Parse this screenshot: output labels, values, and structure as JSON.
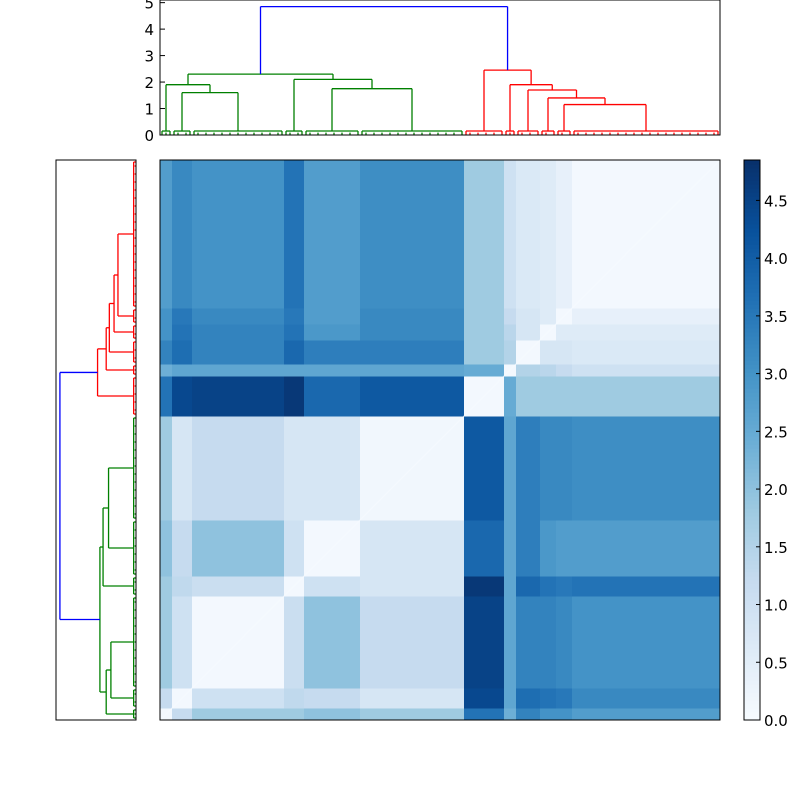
{
  "chart_data": {
    "type": "heatmap",
    "title": "",
    "colormap": "Blues",
    "color_range": [
      0,
      4.85
    ],
    "colorbar_ticks": [
      "0.0",
      "0.5",
      "1.0",
      "1.5",
      "2.0",
      "2.5",
      "3.0",
      "3.5",
      "4.0",
      "4.5"
    ],
    "top_dendrogram_ticks": [
      "0",
      "1",
      "2",
      "3",
      "4",
      "5"
    ],
    "dendrogram_height_range": [
      0,
      5.1
    ],
    "link_colors": {
      "root": "#0000ff",
      "cluster_1": "#008000",
      "cluster_2": "#ff0000"
    },
    "segments": [
      {
        "id": "A",
        "leaves": 3
      },
      {
        "id": "B",
        "leaves": 5
      },
      {
        "id": "C",
        "leaves": 23
      },
      {
        "id": "D",
        "leaves": 5
      },
      {
        "id": "E",
        "leaves": 14
      },
      {
        "id": "F",
        "leaves": 26
      },
      {
        "id": "G",
        "leaves": 10
      },
      {
        "id": "H",
        "leaves": 3
      },
      {
        "id": "I",
        "leaves": 6
      },
      {
        "id": "J",
        "leaves": 4
      },
      {
        "id": "K",
        "leaves": 4
      },
      {
        "id": "L",
        "leaves": 37
      }
    ],
    "block_values": [
      [
        0.1,
        1.2,
        1.8,
        1.8,
        2.0,
        1.8,
        3.6,
        2.4,
        3.3,
        3.0,
        3.0,
        2.8
      ],
      [
        1.2,
        0.1,
        1.0,
        1.3,
        1.2,
        0.8,
        4.4,
        2.6,
        3.7,
        3.6,
        3.5,
        3.2
      ],
      [
        1.8,
        1.0,
        0.1,
        1.1,
        2.0,
        1.2,
        4.5,
        2.6,
        3.3,
        3.3,
        3.2,
        3.0
      ],
      [
        1.8,
        1.3,
        1.1,
        0.1,
        1.0,
        0.8,
        4.7,
        2.6,
        3.8,
        3.6,
        3.5,
        3.6
      ],
      [
        2.0,
        1.2,
        2.0,
        1.0,
        0.1,
        0.8,
        3.8,
        2.6,
        3.4,
        2.9,
        2.8,
        2.8
      ],
      [
        1.8,
        0.8,
        1.2,
        0.8,
        0.8,
        0.15,
        4.1,
        2.6,
        3.4,
        3.2,
        3.2,
        3.1
      ],
      [
        3.6,
        4.4,
        4.5,
        4.7,
        3.8,
        4.1,
        0.1,
        2.5,
        1.8,
        1.8,
        1.8,
        1.8
      ],
      [
        2.4,
        2.6,
        2.6,
        2.6,
        2.6,
        2.6,
        2.5,
        0.1,
        1.5,
        1.4,
        1.2,
        1.0
      ],
      [
        3.3,
        3.7,
        3.3,
        3.8,
        3.4,
        3.4,
        1.8,
        1.5,
        0.1,
        0.8,
        0.8,
        0.7
      ],
      [
        3.0,
        3.6,
        3.3,
        3.6,
        2.9,
        3.2,
        1.8,
        1.4,
        0.8,
        0.1,
        0.6,
        0.6
      ],
      [
        3.0,
        3.5,
        3.2,
        3.5,
        2.8,
        3.2,
        1.8,
        1.2,
        0.8,
        0.6,
        0.1,
        0.4
      ],
      [
        2.8,
        3.2,
        3.0,
        3.6,
        2.8,
        3.1,
        1.8,
        1.0,
        0.7,
        0.6,
        0.4,
        0.1
      ]
    ],
    "linkage": {
      "h": 4.85,
      "color": "root",
      "c": [
        {
          "h": 2.3,
          "color": "cluster_1",
          "c": [
            {
              "h": 1.9,
              "c": [
                "A",
                {
                  "h": 1.6,
                  "c": [
                    "B",
                    "C"
                  ]
                }
              ]
            },
            {
              "h": 2.1,
              "c": [
                "D",
                {
                  "h": 1.75,
                  "c": [
                    "E",
                    "F"
                  ]
                }
              ]
            }
          ]
        },
        {
          "h": 2.45,
          "color": "cluster_2",
          "c": [
            "G",
            {
              "h": 1.9,
              "c": [
                "H",
                {
                  "h": 1.7,
                  "c": [
                    "I",
                    {
                      "h": 1.4,
                      "c": [
                        "J",
                        {
                          "h": 1.15,
                          "c": [
                            "K",
                            "L"
                          ]
                        }
                      ]
                    }
                  ]
                }
              ]
            }
          ]
        }
      ]
    }
  }
}
